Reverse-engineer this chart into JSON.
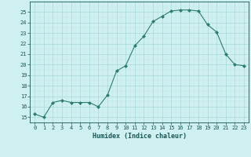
{
  "x": [
    0,
    1,
    2,
    3,
    4,
    5,
    6,
    7,
    8,
    9,
    10,
    11,
    12,
    13,
    14,
    15,
    16,
    17,
    18,
    19,
    20,
    21,
    22,
    23
  ],
  "y": [
    15.3,
    15.0,
    16.4,
    16.6,
    16.4,
    16.4,
    16.4,
    16.0,
    17.1,
    19.4,
    19.9,
    21.8,
    22.7,
    24.1,
    24.6,
    25.1,
    25.2,
    25.2,
    25.1,
    23.8,
    23.1,
    21.0,
    20.0,
    19.9
  ],
  "line_color": "#2e7d6e",
  "marker": "D",
  "marker_size": 2.0,
  "bg_color": "#cff0f0",
  "grid_major_color": "#a8d8d8",
  "grid_minor_color": "#bce4e4",
  "xlabel": "Humidex (Indice chaleur)",
  "xlim": [
    -0.5,
    23.5
  ],
  "ylim": [
    14.5,
    26.0
  ],
  "yticks": [
    15,
    16,
    17,
    18,
    19,
    20,
    21,
    22,
    23,
    24,
    25
  ],
  "xticks": [
    0,
    1,
    2,
    3,
    4,
    5,
    6,
    7,
    8,
    9,
    10,
    11,
    12,
    13,
    14,
    15,
    16,
    17,
    18,
    19,
    20,
    21,
    22,
    23
  ],
  "tick_color": "#1a5555",
  "label_fontsize": 5.0,
  "xlabel_fontsize": 6.0
}
